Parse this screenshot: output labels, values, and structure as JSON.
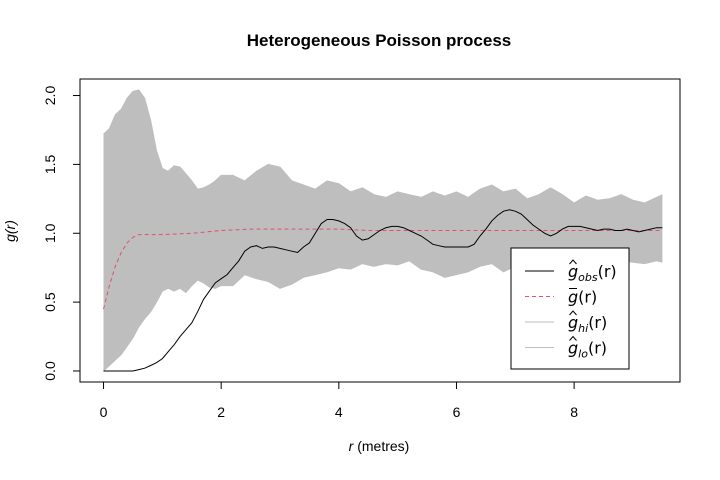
{
  "chart_data": {
    "type": "line",
    "title": "Heterogeneous Poisson process",
    "xlabel_italic": "r",
    "xlabel_rest": " (metres)",
    "ylabel": "g(r)",
    "xlim": [
      -0.4,
      9.8
    ],
    "ylim": [
      -0.08,
      2.12
    ],
    "xticks": [
      0,
      2,
      4,
      6,
      8
    ],
    "yticks": [
      0.0,
      0.5,
      1.0,
      1.5,
      2.0
    ],
    "ytick_labels": [
      "0.0",
      "0.5",
      "1.0",
      "1.5",
      "2.0"
    ],
    "legend_position": "bottom-right",
    "colors": {
      "obs": "#000000",
      "theo": "#df536b",
      "envelope": "#bebebe",
      "axis": "#000000"
    },
    "legend": [
      {
        "key": "obs",
        "base": "g",
        "hat": true,
        "bar": false,
        "sub": "obs",
        "suffix": "(r)",
        "style": "solid",
        "color": "#000000"
      },
      {
        "key": "theo",
        "base": "g",
        "hat": false,
        "bar": true,
        "sub": "",
        "suffix": "(r)",
        "style": "dashed",
        "color": "#df536b"
      },
      {
        "key": "hi",
        "base": "g",
        "hat": true,
        "bar": false,
        "sub": "hi",
        "suffix": "(r)",
        "style": "solid",
        "color": "#bebebe"
      },
      {
        "key": "lo",
        "base": "g",
        "hat": true,
        "bar": false,
        "sub": "lo",
        "suffix": "(r)",
        "style": "solid",
        "color": "#bebebe"
      }
    ],
    "series": [
      {
        "key": "obs",
        "x": [
          0,
          0.2,
          0.4,
          0.5,
          0.6,
          0.7,
          0.8,
          0.9,
          1.0,
          1.1,
          1.2,
          1.3,
          1.4,
          1.5,
          1.6,
          1.7,
          1.8,
          1.9,
          2.0,
          2.1,
          2.2,
          2.3,
          2.4,
          2.5,
          2.6,
          2.7,
          2.8,
          2.9,
          3.0,
          3.1,
          3.2,
          3.3,
          3.4,
          3.5,
          3.6,
          3.7,
          3.8,
          3.9,
          4.0,
          4.1,
          4.2,
          4.3,
          4.4,
          4.5,
          4.6,
          4.7,
          4.8,
          4.9,
          5.0,
          5.1,
          5.2,
          5.3,
          5.4,
          5.5,
          5.6,
          5.7,
          5.8,
          5.9,
          6.0,
          6.1,
          6.2,
          6.3,
          6.4,
          6.5,
          6.6,
          6.7,
          6.8,
          6.9,
          7.0,
          7.1,
          7.2,
          7.3,
          7.4,
          7.5,
          7.6,
          7.7,
          7.8,
          7.9,
          8.0,
          8.1,
          8.2,
          8.3,
          8.4,
          8.5,
          8.6,
          8.7,
          8.8,
          8.9,
          9.0,
          9.1,
          9.2,
          9.3,
          9.4,
          9.5
        ],
        "y": [
          0,
          0,
          0,
          0,
          0.01,
          0.02,
          0.04,
          0.06,
          0.09,
          0.14,
          0.19,
          0.25,
          0.3,
          0.35,
          0.43,
          0.52,
          0.58,
          0.64,
          0.67,
          0.7,
          0.75,
          0.8,
          0.87,
          0.9,
          0.91,
          0.89,
          0.9,
          0.9,
          0.89,
          0.88,
          0.87,
          0.86,
          0.9,
          0.93,
          1.0,
          1.07,
          1.1,
          1.1,
          1.09,
          1.07,
          1.04,
          0.98,
          0.95,
          0.96,
          0.99,
          1.02,
          1.04,
          1.05,
          1.05,
          1.04,
          1.02,
          1.0,
          0.98,
          0.95,
          0.92,
          0.91,
          0.9,
          0.9,
          0.9,
          0.9,
          0.9,
          0.92,
          0.98,
          1.03,
          1.09,
          1.13,
          1.16,
          1.17,
          1.16,
          1.14,
          1.1,
          1.06,
          1.03,
          1.0,
          0.98,
          1.0,
          1.03,
          1.05,
          1.05,
          1.05,
          1.04,
          1.03,
          1.02,
          1.03,
          1.03,
          1.02,
          1.02,
          1.03,
          1.02,
          1.01,
          1.02,
          1.03,
          1.04,
          1.04
        ]
      },
      {
        "key": "theo",
        "x": [
          0,
          0.1,
          0.2,
          0.3,
          0.4,
          0.5,
          0.6,
          0.8,
          1.0,
          1.5,
          2.0,
          2.5,
          3.0,
          3.5,
          4.0,
          4.5,
          5.0,
          5.5,
          6.0,
          6.5,
          7.0,
          7.5,
          8.0,
          8.5,
          9.0,
          9.5
        ],
        "y": [
          0.45,
          0.62,
          0.76,
          0.86,
          0.93,
          0.97,
          0.99,
          0.99,
          0.99,
          1.0,
          1.02,
          1.03,
          1.03,
          1.03,
          1.03,
          1.02,
          1.02,
          1.02,
          1.02,
          1.02,
          1.02,
          1.02,
          1.02,
          1.02,
          1.02,
          1.02
        ]
      },
      {
        "key": "hi",
        "x": [
          0,
          0.1,
          0.2,
          0.3,
          0.4,
          0.5,
          0.6,
          0.7,
          0.8,
          0.9,
          1.0,
          1.1,
          1.2,
          1.3,
          1.4,
          1.5,
          1.6,
          1.7,
          1.8,
          1.9,
          2.0,
          2.2,
          2.4,
          2.6,
          2.8,
          3.0,
          3.2,
          3.4,
          3.6,
          3.8,
          4.0,
          4.2,
          4.4,
          4.6,
          4.8,
          5.0,
          5.2,
          5.4,
          5.6,
          5.8,
          6.0,
          6.2,
          6.4,
          6.6,
          6.8,
          7.0,
          7.2,
          7.4,
          7.6,
          7.8,
          8.0,
          8.2,
          8.4,
          8.6,
          8.8,
          9.0,
          9.2,
          9.4,
          9.5
        ],
        "y": [
          1.72,
          1.76,
          1.86,
          1.9,
          1.98,
          2.03,
          2.04,
          1.98,
          1.82,
          1.6,
          1.47,
          1.45,
          1.49,
          1.48,
          1.43,
          1.38,
          1.32,
          1.33,
          1.35,
          1.38,
          1.42,
          1.42,
          1.38,
          1.45,
          1.5,
          1.48,
          1.38,
          1.35,
          1.32,
          1.38,
          1.36,
          1.3,
          1.33,
          1.28,
          1.26,
          1.3,
          1.28,
          1.26,
          1.3,
          1.27,
          1.3,
          1.26,
          1.32,
          1.35,
          1.3,
          1.32,
          1.25,
          1.28,
          1.33,
          1.28,
          1.22,
          1.27,
          1.24,
          1.25,
          1.28,
          1.24,
          1.22,
          1.26,
          1.28
        ]
      },
      {
        "key": "lo",
        "x": [
          0,
          0.1,
          0.2,
          0.3,
          0.4,
          0.5,
          0.6,
          0.7,
          0.8,
          0.9,
          1.0,
          1.1,
          1.2,
          1.3,
          1.4,
          1.5,
          1.6,
          1.7,
          1.8,
          1.9,
          2.0,
          2.2,
          2.4,
          2.6,
          2.8,
          3.0,
          3.2,
          3.4,
          3.6,
          3.8,
          4.0,
          4.2,
          4.4,
          4.6,
          4.8,
          5.0,
          5.2,
          5.4,
          5.6,
          5.8,
          6.0,
          6.2,
          6.4,
          6.6,
          6.8,
          7.0,
          7.2,
          7.4,
          7.6,
          7.8,
          8.0,
          8.2,
          8.4,
          8.6,
          8.8,
          9.0,
          9.2,
          9.4,
          9.5
        ],
        "y": [
          0.0,
          0.04,
          0.08,
          0.12,
          0.18,
          0.24,
          0.32,
          0.38,
          0.43,
          0.5,
          0.58,
          0.6,
          0.58,
          0.6,
          0.57,
          0.62,
          0.66,
          0.64,
          0.61,
          0.6,
          0.62,
          0.62,
          0.7,
          0.67,
          0.65,
          0.6,
          0.63,
          0.68,
          0.7,
          0.72,
          0.75,
          0.74,
          0.78,
          0.76,
          0.78,
          0.77,
          0.8,
          0.74,
          0.72,
          0.68,
          0.7,
          0.72,
          0.76,
          0.78,
          0.72,
          0.76,
          0.8,
          0.82,
          0.78,
          0.8,
          0.8,
          0.77,
          0.78,
          0.82,
          0.8,
          0.79,
          0.78,
          0.8,
          0.79
        ]
      }
    ]
  }
}
